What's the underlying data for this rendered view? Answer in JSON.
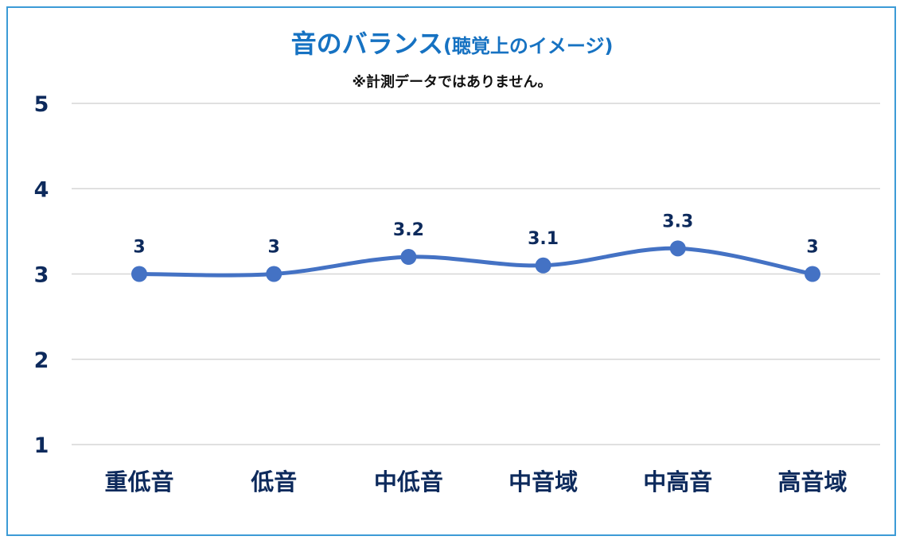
{
  "chart_data": {
    "type": "line",
    "title": "音のバランス",
    "title_suffix": "(聴覚上のイメージ)",
    "subtitle": "※計測データではありません。",
    "categories": [
      "重低音",
      "低音",
      "中低音",
      "中音域",
      "中高音",
      "高音域"
    ],
    "values": [
      3,
      3,
      3.2,
      3.1,
      3.3,
      3
    ],
    "data_labels": [
      "3",
      "3",
      "3.2",
      "3.1",
      "3.3",
      "3"
    ],
    "yticks": [
      "5",
      "4",
      "3",
      "2",
      "1"
    ],
    "ylim": [
      1,
      5
    ],
    "xlabel": "",
    "ylabel": "",
    "grid": true,
    "smooth": true,
    "legend": "none"
  },
  "colors": {
    "line": "#4472c4",
    "title": "#1672c2",
    "axis_text": "#0d2a5c",
    "grid": "#d6d6d6",
    "frame": "#3c9bd6"
  }
}
